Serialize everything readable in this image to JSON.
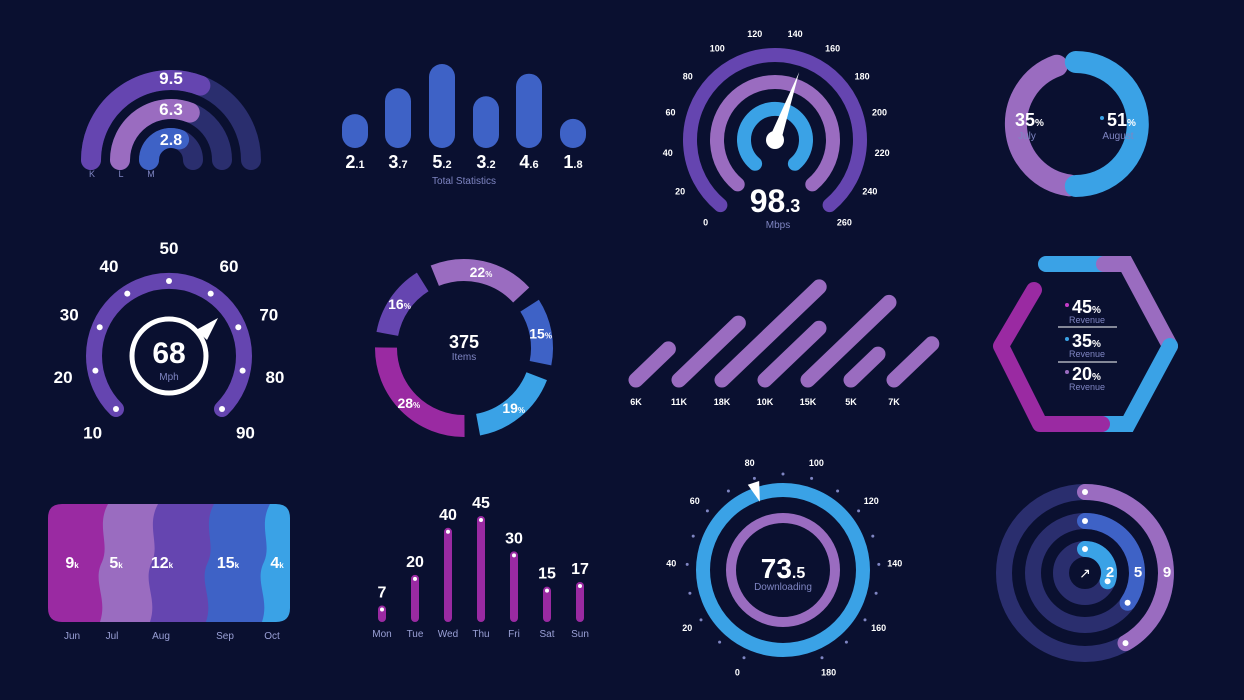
{
  "palette": {
    "background": "#0a1030",
    "violet": "#6545b0",
    "lilac": "#9a6cc0",
    "blue": "#3e62c6",
    "sky": "#3aa2e6",
    "magenta": "#9a2aa2",
    "navy": "#2a2e6e",
    "white": "#ffffff",
    "dim": "#7f85c2"
  },
  "chart_data": [
    {
      "id": "klm",
      "type": "radial-bar",
      "values": [
        "9.5",
        "6.3",
        "2.8"
      ],
      "labels": [
        "K",
        "L",
        "M"
      ],
      "fractions": [
        0.62,
        0.62,
        0.62
      ]
    },
    {
      "id": "totals",
      "type": "bar",
      "caption": "Total Statistics",
      "values": [
        2.1,
        3.7,
        5.2,
        3.2,
        4.6,
        1.8
      ],
      "display": [
        {
          "major": "2",
          "minor": ".1"
        },
        {
          "major": "3",
          "minor": ".7"
        },
        {
          "major": "5",
          "minor": ".2"
        },
        {
          "major": "3",
          "minor": ".2"
        },
        {
          "major": "4",
          "minor": ".6"
        },
        {
          "major": "1",
          "minor": ".8"
        }
      ]
    },
    {
      "id": "mbps",
      "type": "gauge",
      "ticks": [
        "0",
        "20",
        "40",
        "60",
        "80",
        "100",
        "120",
        "140",
        "160",
        "180",
        "200",
        "220",
        "240",
        "260"
      ],
      "value": 98.3,
      "value_major": "98",
      "value_minor": ".3",
      "unit": "Mbps",
      "needle_fraction": 0.57
    },
    {
      "id": "jul-aug",
      "type": "donut",
      "items": [
        {
          "pct": "35",
          "unit": "%",
          "label": "July"
        },
        {
          "pct": "51",
          "unit": "%",
          "label": "August"
        }
      ]
    },
    {
      "id": "mph",
      "type": "gauge",
      "ticks": [
        "10",
        "20",
        "30",
        "40",
        "50",
        "60",
        "70",
        "80",
        "90"
      ],
      "value": "68",
      "unit": "Mph"
    },
    {
      "id": "items",
      "type": "donut",
      "center_value": "375",
      "center_label": "Items",
      "segments": [
        {
          "pct": 22,
          "label": "22",
          "unit": "%"
        },
        {
          "pct": 15,
          "label": "15",
          "unit": "%"
        },
        {
          "pct": 19,
          "label": "19",
          "unit": "%"
        },
        {
          "pct": 28,
          "label": "28",
          "unit": "%"
        },
        {
          "pct": 16,
          "label": "16",
          "unit": "%"
        }
      ]
    },
    {
      "id": "diagonal",
      "type": "bar",
      "categories": [
        "6K",
        "11K",
        "18K",
        "10K",
        "15K",
        "5K",
        "7K"
      ],
      "values": [
        6,
        11,
        18,
        10,
        15,
        5,
        7
      ]
    },
    {
      "id": "revenue",
      "type": "donut",
      "items": [
        {
          "pct": "45",
          "unit": "%",
          "label": "Revenue"
        },
        {
          "pct": "35",
          "unit": "%",
          "label": "Revenue"
        },
        {
          "pct": "20",
          "unit": "%",
          "label": "Revenue"
        }
      ]
    },
    {
      "id": "monthly",
      "type": "area",
      "categories": [
        "Jun",
        "Jul",
        "Aug",
        "Sep",
        "Oct"
      ],
      "values": [
        {
          "major": "9",
          "unit": "k"
        },
        {
          "major": "5",
          "unit": "k"
        },
        {
          "major": "12",
          "unit": "k"
        },
        {
          "major": "15",
          "unit": "k"
        },
        {
          "major": "4",
          "unit": "k"
        }
      ]
    },
    {
      "id": "weekly",
      "type": "bar",
      "categories": [
        "Mon",
        "Tue",
        "Wed",
        "Thu",
        "Fri",
        "Sat",
        "Sun"
      ],
      "values": [
        7,
        20,
        40,
        45,
        30,
        15,
        17
      ]
    },
    {
      "id": "download",
      "type": "gauge",
      "ticks": [
        "0",
        "20",
        "40",
        "60",
        "80",
        "100",
        "120",
        "140",
        "160",
        "180"
      ],
      "value_major": "73",
      "value_minor": ".5",
      "label": "Downloading",
      "needle_fraction": 0.44
    },
    {
      "id": "rings",
      "type": "radial-bar",
      "values": [
        "2",
        "5",
        "9"
      ]
    }
  ]
}
